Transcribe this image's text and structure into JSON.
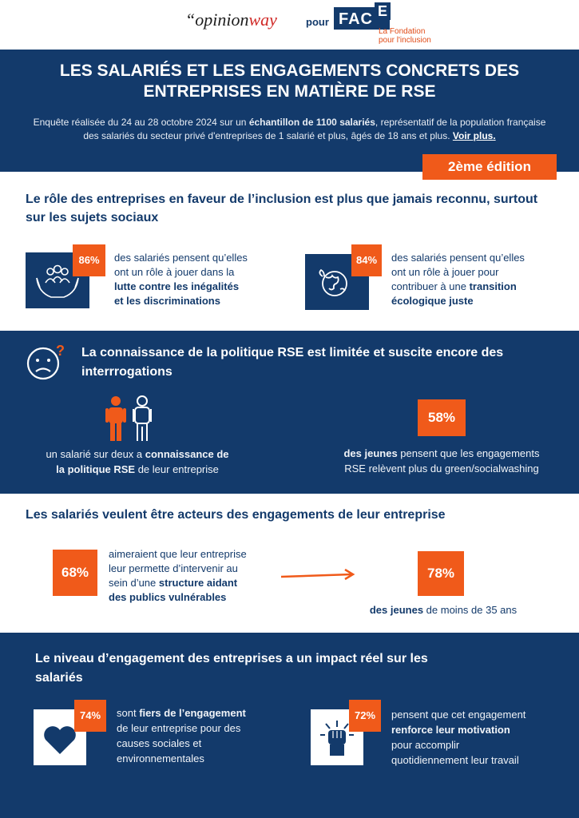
{
  "header": {
    "logo_opinion": "opinion",
    "logo_way": "way",
    "logo_quote": "“",
    "pour": "pour",
    "face_main": "FAC",
    "face_e": "E",
    "face_sub_1": "La Fondation",
    "face_sub_2": "pour l'inclusion"
  },
  "title": {
    "line1": "LES SALARIÉS ET LES ENGAGEMENTS CONCRETS DES",
    "line2": "ENTREPRISES EN MATIÈRE DE RSE"
  },
  "intro": {
    "part1": "Enquête réalisée du 24 au 28 octobre 2024 sur un ",
    "bold": "échantillon de 1100 salariés",
    "part2": ", représentatif de la population française des salariés du secteur privé d'entreprises de 1 salarié et plus, âgés de 18 ans et plus. ",
    "more": "Voir plus."
  },
  "edition": "2ème édition",
  "section1": {
    "title": "Le rôle des entreprises en faveur de l’inclusion est plus que jamais reconnu, surtout sur les sujets sociaux",
    "stat_a": {
      "badge": "86%",
      "line1": "des salariés pensent qu’elles",
      "line2": "ont un rôle à jouer dans la",
      "bold1": "lutte contre les inégalités",
      "bold2": "et les discriminations"
    },
    "stat_b": {
      "badge": "84%",
      "line1": "des salariés pensent qu’elles",
      "line2": "ont un rôle à jouer pour",
      "line3": "contribuer à une ",
      "bold1": "transition",
      "bold2": "écologique juste"
    }
  },
  "section2": {
    "title_1": "La connaissance de la politique RSE est limitée et suscite encore des",
    "title_2": "interrrogations",
    "stat_a": {
      "line1": "un salarié sur deux a ",
      "bold1": "connaissance de",
      "bold2": "la politique RSE",
      "line2": " de leur entreprise"
    },
    "stat_b": {
      "badge": "58%",
      "bold1": "des jeunes",
      "line1": " pensent que les engagements",
      "line2": "RSE relèvent plus du green/socialwashing"
    }
  },
  "section3": {
    "title": "Les salariés veulent être acteurs des engagements de leur entreprise",
    "stat_a": {
      "badge": "68%",
      "line1": "aimeraient que leur entreprise",
      "line2": "leur permette d’intervenir au",
      "line3": "sein d’une ",
      "bold1": "structure aidant",
      "bold2": "des publics vulnérables"
    },
    "stat_b": {
      "badge": "78%",
      "bold1": "des jeunes",
      "line1": " de moins de 35 ans"
    }
  },
  "section4": {
    "title_1": "Le niveau d’engagement des entreprises a un impact réel sur les",
    "title_2": "salariés",
    "stat_a": {
      "badge": "74%",
      "line1": "sont ",
      "bold1": "fiers de l’engagement",
      "line2": "de leur entreprise pour des",
      "line3": "causes sociales et",
      "line4": "environnementales"
    },
    "stat_b": {
      "badge": "72%",
      "line1": "pensent que cet engagement",
      "bold1": "renforce leur motivation",
      "line2": "pour accomplir",
      "line3": "quotidiennement leur travail"
    }
  },
  "colors": {
    "navy": "#133a6b",
    "orange": "#f05a1a"
  }
}
